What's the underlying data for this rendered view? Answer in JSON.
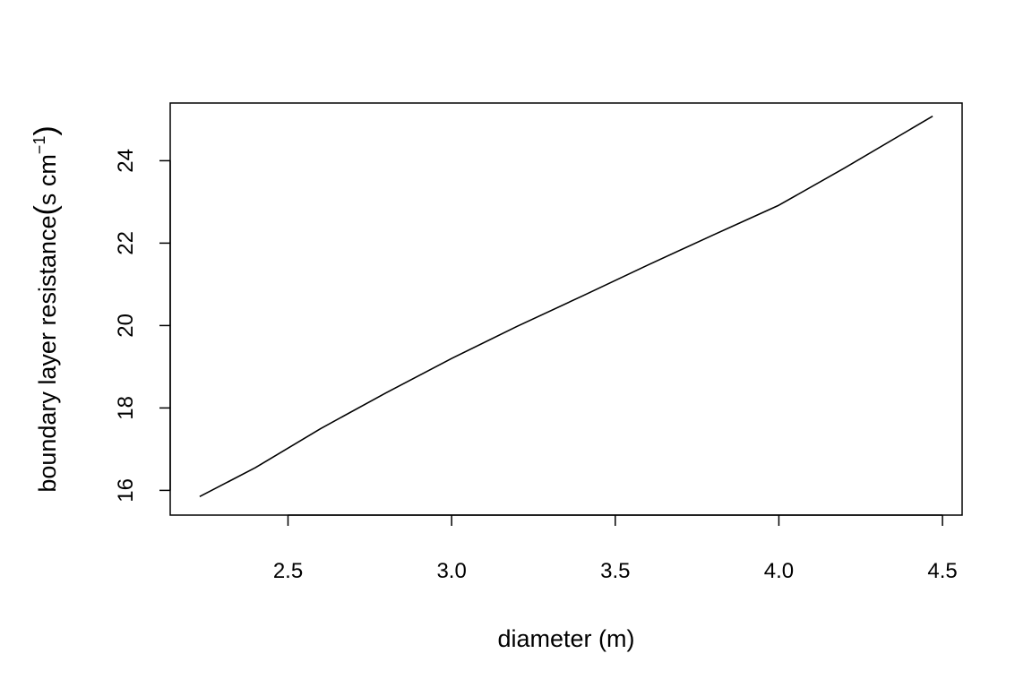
{
  "chart_data": {
    "type": "line",
    "xlabel": "diameter (m)",
    "ylabel": {
      "main": "boundary layer resistance",
      "open": "(",
      "unit": "s cm",
      "exponent": "−1",
      "close": ")"
    },
    "xlim": [
      2.14,
      4.56
    ],
    "ylim": [
      15.4,
      25.4
    ],
    "xticks": [
      {
        "value": 2.5,
        "label": "2.5"
      },
      {
        "value": 3.0,
        "label": "3.0"
      },
      {
        "value": 3.5,
        "label": "3.5"
      },
      {
        "value": 4.0,
        "label": "4.0"
      },
      {
        "value": 4.5,
        "label": "4.5"
      }
    ],
    "yticks": [
      {
        "value": 16,
        "label": "16"
      },
      {
        "value": 18,
        "label": "18"
      },
      {
        "value": 20,
        "label": "20"
      },
      {
        "value": 22,
        "label": "22"
      },
      {
        "value": 24,
        "label": "24"
      }
    ],
    "grid": false,
    "legend": "none",
    "line_color": "#000000",
    "series": [
      {
        "x": [
          2.23,
          2.4,
          2.6,
          2.8,
          3.0,
          3.2,
          3.4,
          3.6,
          3.8,
          4.0,
          4.2,
          4.47
        ],
        "y": [
          15.85,
          16.55,
          17.5,
          18.37,
          19.2,
          19.98,
          20.72,
          21.47,
          22.2,
          22.92,
          23.82,
          25.08
        ]
      }
    ]
  }
}
